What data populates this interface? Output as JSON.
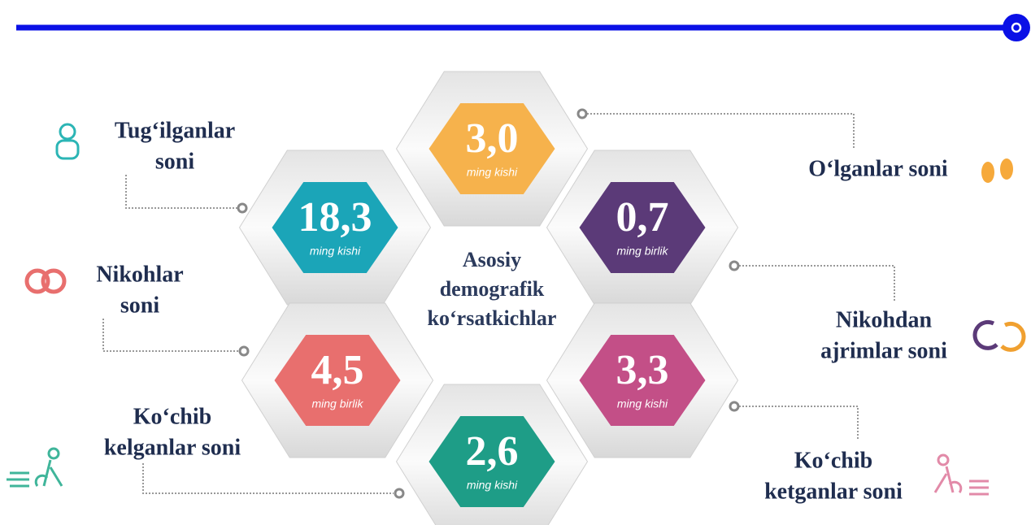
{
  "title": [
    "Asosiy",
    "demografik",
    "ko‘rsatkichlar"
  ],
  "items": [
    {
      "label": [
        "Tug‘ilganlar",
        "soni"
      ],
      "value": "18,3",
      "unit": "ming kishi",
      "color": "#1ba5b8"
    },
    {
      "label": [
        "O‘lganlar soni"
      ],
      "value": "3,0",
      "unit": "ming kishi",
      "color": "#f6b24c"
    },
    {
      "label": [
        "Nikohlar",
        "soni"
      ],
      "value": "4,5",
      "unit": "ming birlik",
      "color": "#e86f6e"
    },
    {
      "label": [
        "Nikohdan",
        "ajrimlar soni"
      ],
      "value": "0,7",
      "unit": "ming birlik",
      "color": "#5b3a78"
    },
    {
      "label": [
        "Ko‘chib",
        "kelganlar soni"
      ],
      "value": "2,6",
      "unit": "ming kishi",
      "color": "#1e9d87"
    },
    {
      "label": [
        "Ko‘chib",
        "ketganlar soni"
      ],
      "value": "3,3",
      "unit": "ming kishi",
      "color": "#c34f87"
    }
  ]
}
